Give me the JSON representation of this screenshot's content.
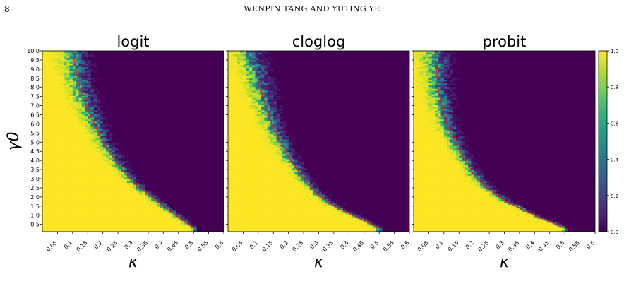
{
  "header": {
    "page_number": "8",
    "running_head": "WENPIN TANG AND YUTING YE"
  },
  "colors": {
    "viridis_low": "#440154",
    "viridis_mid": "#21918c",
    "viridis_high": "#fde725",
    "boundary_curve": "#d62728"
  },
  "chart_data": [
    {
      "type": "heatmap",
      "title": "logit",
      "xlabel": "κ",
      "ylabel": "γ0",
      "xlim": [
        0.0,
        0.6
      ],
      "ylim": [
        0.1,
        10.0
      ],
      "boundary": {
        "x": [
          0.5,
          0.4,
          0.3,
          0.25,
          0.2,
          0.15,
          0.12,
          0.1
        ],
        "y": [
          0.3,
          1.5,
          2.8,
          3.8,
          5.0,
          6.8,
          8.2,
          10.0
        ]
      }
    },
    {
      "type": "heatmap",
      "title": "cloglog",
      "xlabel": "κ",
      "ylabel": "",
      "xlim": [
        0.0,
        0.6
      ],
      "ylim": [
        0.1,
        10.0
      ],
      "boundary": {
        "x": [
          0.5,
          0.45,
          0.35,
          0.3,
          0.25,
          0.2,
          0.15,
          0.12,
          0.1
        ],
        "y": [
          0.3,
          0.7,
          1.5,
          2.1,
          3.0,
          4.2,
          5.8,
          7.2,
          8.3
        ]
      }
    },
    {
      "type": "heatmap",
      "title": "probit",
      "xlabel": "κ",
      "ylabel": "",
      "xlim": [
        0.0,
        0.6
      ],
      "ylim": [
        0.1,
        10.0
      ],
      "boundary": {
        "x": [
          0.5,
          0.4,
          0.3,
          0.25,
          0.2,
          0.15,
          0.12,
          0.1,
          0.08,
          0.07
        ],
        "y": [
          0.3,
          1.0,
          1.8,
          2.4,
          3.2,
          4.6,
          5.6,
          6.5,
          8.0,
          10.0
        ]
      }
    }
  ],
  "axes": {
    "x_ticks": [
      "0.05",
      "0.1",
      "0.15",
      "0.2",
      "0.25",
      "0.3",
      "0.35",
      "0.4",
      "0.45",
      "0.5",
      "0.55",
      "0.6"
    ],
    "x_tick_values": [
      0.05,
      0.1,
      0.15,
      0.2,
      0.25,
      0.3,
      0.35,
      0.4,
      0.45,
      0.5,
      0.55,
      0.6
    ],
    "y_ticks": [
      "10.0",
      "9.5",
      "9.0",
      "8.5",
      "8.0",
      "7.5",
      "7.0",
      "6.5",
      "6.0",
      "5.5",
      "5.0",
      "4.5",
      "4.0",
      "3.5",
      "3.0",
      "2.5",
      "2.0",
      "1.5",
      "1.0",
      "0.5"
    ],
    "y_tick_values": [
      10.0,
      9.5,
      9.0,
      8.5,
      8.0,
      7.5,
      7.0,
      6.5,
      6.0,
      5.5,
      5.0,
      4.5,
      4.0,
      3.5,
      3.0,
      2.5,
      2.0,
      1.5,
      1.0,
      0.5
    ]
  },
  "colorbar": {
    "ticks": [
      "1.0",
      "0.8",
      "0.6",
      "0.4",
      "0.2",
      "0.0"
    ],
    "tick_values": [
      1.0,
      0.8,
      0.6,
      0.4,
      0.2,
      0.0
    ]
  }
}
